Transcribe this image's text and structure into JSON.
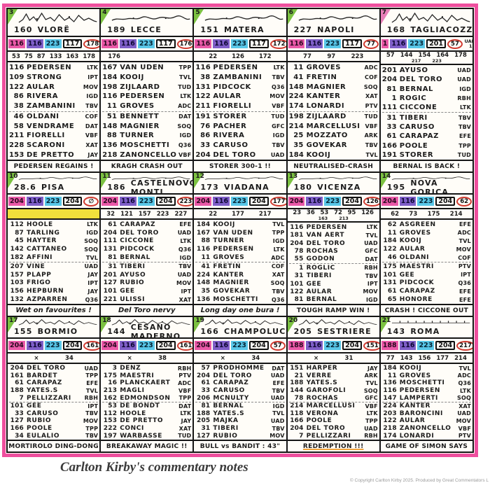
{
  "page": {
    "caption": "Carlton Kirby's commentary notes",
    "copyright": "© Copyright Carlton Kirby 2025. Produced by Great Commentators L",
    "frame_color": "#ee4f9e"
  },
  "colors": {
    "pink_chip": "#ea59a8",
    "purple_chip": "#7f5fc8",
    "blue_chip": "#59c7e8",
    "red_circle": "#d03a30",
    "yellow_highlight": "#f0e03c",
    "corner_green": "#7cc242",
    "corner_pink": "#e87fb8"
  },
  "panels": [
    {
      "stage": "3",
      "corner_color": "#7cc242",
      "profile": "mountain",
      "distance": "160",
      "city": "VLORË",
      "chips": {
        "pink": "116",
        "purple": "116",
        "blue": "223",
        "boxed": "117",
        "circled": "178",
        "code_top": "XAT",
        "code_bot": "22"
      },
      "subrow": "53 75 87 133 163 178",
      "subrow2": "",
      "yellow_bar": false,
      "riders": [
        [
          "116",
          "PEDERSEN",
          "LTK"
        ],
        [
          "109",
          "STRONG",
          "IPT"
        ],
        [
          "122",
          "AULAR",
          "MOV"
        ],
        [
          "86",
          "RIVERA",
          "IGD"
        ],
        [
          "38",
          "ZAMBANINI",
          "TBV"
        ],
        [
          "46",
          "OLDANI",
          "COF"
        ],
        [
          "58",
          "VENDRAME",
          "DAT"
        ],
        [
          "211",
          "FIORELLI",
          "VBF"
        ],
        [
          "228",
          "SCARONI",
          "XAT"
        ],
        [
          "153",
          "DE PRETTO",
          "JAY"
        ]
      ],
      "note": "PEDERSEN REGAINS !",
      "note_script": false,
      "note_underline": false
    },
    {
      "stage": "4",
      "corner_color": "#7cc242",
      "profile": "hilly",
      "distance": "189",
      "city": "LECCE",
      "chips": {
        "pink": "116",
        "purple": "116",
        "blue": "223",
        "boxed": "117",
        "circled": "176",
        "code_top": "LTK",
        "code_bot": "24"
      },
      "subrow": "176",
      "subrow2": "",
      "yellow_bar": false,
      "riders": [
        [
          "167",
          "VAN UDEN",
          "TPP"
        ],
        [
          "184",
          "KOOIJ",
          "TVL"
        ],
        [
          "198",
          "ZIJLAARD",
          "TUD"
        ],
        [
          "116",
          "PEDERSEN",
          "LTK"
        ],
        [
          "11",
          "GROVES",
          "ADC"
        ],
        [
          "51",
          "BENNETT",
          "DAT"
        ],
        [
          "148",
          "MAGNIER",
          "SOQ"
        ],
        [
          "88",
          "TURNER",
          "IGD"
        ],
        [
          "136",
          "MOSCHETTI",
          "Q36"
        ],
        [
          "218",
          "ZANONCELLO",
          "VBF"
        ]
      ],
      "note": "KRAGH CRASH OUT",
      "note_script": false,
      "note_underline": false
    },
    {
      "stage": "5",
      "corner_color": "#7cc242",
      "profile": "hilly",
      "distance": "151",
      "city": "MATERA",
      "chips": {
        "pink": "116",
        "purple": "116",
        "blue": "223",
        "boxed": "117",
        "circled": "172",
        "code_top": "LTK",
        "code_bot": "16"
      },
      "subrow": "22 126 172",
      "subrow2": "",
      "yellow_bar": false,
      "riders": [
        [
          "116",
          "PEDERSEN",
          "LTK"
        ],
        [
          "38",
          "ZAMBANINI",
          "TBV"
        ],
        [
          "131",
          "PIDCOCK",
          "Q36"
        ],
        [
          "122",
          "AULAR",
          "MOV"
        ],
        [
          "211",
          "FIORELLI",
          "VBF"
        ],
        [
          "191",
          "STORER",
          "TUD"
        ],
        [
          "76",
          "PACHER",
          "GFC"
        ],
        [
          "86",
          "RIVERA",
          "IGD"
        ],
        [
          "33",
          "CARUSO",
          "TBV"
        ],
        [
          "204",
          "DEL TORO",
          "UAD"
        ]
      ],
      "note": "STORER 300-1 !!",
      "note_script": false,
      "note_underline": false
    },
    {
      "stage": "6",
      "corner_color": "#7cc242",
      "profile": "hilly",
      "distance": "227",
      "city": "NAPOLI",
      "chips": {
        "pink": "116",
        "purple": "116",
        "blue": "223",
        "boxed": "117",
        "circled": "77",
        "code_top": "LTK",
        "code_bot": "19"
      },
      "subrow": "77 97 223",
      "subrow2": "",
      "yellow_bar": false,
      "riders": [
        [
          "11",
          "GROVES",
          "ADC"
        ],
        [
          "41",
          "FRETIN",
          "COF"
        ],
        [
          "148",
          "MAGNIER",
          "SOQ"
        ],
        [
          "224",
          "KANTER",
          "XAT"
        ],
        [
          "174",
          "LONARDI",
          "PTV"
        ],
        [
          "198",
          "ZIJLAARD",
          "TUD"
        ],
        [
          "214",
          "MARCELLUSI",
          "VBF"
        ],
        [
          "25",
          "MOZZATO",
          "ARK"
        ],
        [
          "35",
          "GOVEKAR",
          "TBV"
        ],
        [
          "184",
          "KOOIJ",
          "TVL"
        ]
      ],
      "note": "NEUTRALISED-CRASH",
      "note_script": false,
      "note_underline": false
    },
    {
      "stage": "7",
      "corner_color": "#e87fb8",
      "profile": "mountain",
      "distance": "168",
      "city": "TAGLIACOZZO",
      "chips": {
        "pink": "1",
        "purple": "116",
        "blue": "223",
        "boxed": "201",
        "circled": "57",
        "code_top": "UAD",
        "code_bot": "13"
      },
      "subrow": "57 144 154 164 178",
      "subrow2": "217 223",
      "yellow_bar": false,
      "riders": [
        [
          "201",
          "AYUSO",
          "UAD"
        ],
        [
          "204",
          "DEL TORO",
          "UAD"
        ],
        [
          "81",
          "BERNAL",
          "IGD"
        ],
        [
          "1",
          "ROGIC",
          "RBH"
        ],
        [
          "111",
          "CICCONE",
          "LTK"
        ],
        [
          "31",
          "TIBERI",
          "TBV"
        ],
        [
          "33",
          "CARUSO",
          "TBV"
        ],
        [
          "61",
          "CARAPAZ",
          "EFE"
        ],
        [
          "166",
          "POOLE",
          "TPP"
        ],
        [
          "191",
          "STORER",
          "TUD"
        ]
      ],
      "note": "BERNAL IS BACK !",
      "note_script": false,
      "note_underline": false
    },
    {
      "stage": "10",
      "corner_color": "#7cc242",
      "profile": "hilly",
      "distance": "28.6",
      "city": "PISA",
      "chips": {
        "pink": "204",
        "purple": "116",
        "blue": "223",
        "boxed": "204",
        "circled": "∅",
        "code_top": "UAD",
        "code_bot": "16"
      },
      "subrow": "",
      "subrow2": "",
      "yellow_bar": true,
      "riders": [
        [
          "112",
          "HOOLE",
          "LTK"
        ],
        [
          "87",
          "TARLING",
          "IGD"
        ],
        [
          "45",
          "HAYTER",
          "SOQ"
        ],
        [
          "142",
          "CATTANEO",
          "SOQ"
        ],
        [
          "182",
          "AFFINI",
          "TVL"
        ],
        [
          "207",
          "VINE",
          "UAD"
        ],
        [
          "157",
          "PLAPP",
          "JAY"
        ],
        [
          "103",
          "FRIGO",
          "IPT"
        ],
        [
          "156",
          "HEPBURN",
          "JAY"
        ],
        [
          "132",
          "AZPARREN",
          "Q36"
        ]
      ],
      "note": "Wet on favourites !",
      "note_script": true,
      "note_underline": false
    },
    {
      "stage": "11",
      "corner_color": "#7cc242",
      "profile": "hilly",
      "distance": "186",
      "city": "CASTELNOVO MONTI",
      "chips": {
        "pink": "204",
        "purple": "116",
        "blue": "223",
        "boxed": "204",
        "circled": "223",
        "code_top": "UAD",
        "code_bot": "18"
      },
      "subrow": "32 121 157 223 227",
      "subrow2": "",
      "yellow_bar": false,
      "riders": [
        [
          "61",
          "CARAPAZ",
          "EFE"
        ],
        [
          "204",
          "DEL TORO",
          "UAD"
        ],
        [
          "111",
          "CICCONE",
          "LTK"
        ],
        [
          "131",
          "PIDCOCK",
          "Q36"
        ],
        [
          "81",
          "BERNAL",
          "IGD"
        ],
        [
          "31",
          "TIBERI",
          "TBV"
        ],
        [
          "201",
          "AYUSO",
          "UAD"
        ],
        [
          "127",
          "RUBIO",
          "MOV"
        ],
        [
          "101",
          "GEE",
          "IPT"
        ],
        [
          "221",
          "ULISSI",
          "XAT"
        ]
      ],
      "note": "Del Toro nervy",
      "note_script": true,
      "note_underline": false
    },
    {
      "stage": "12",
      "corner_color": "#7cc242",
      "profile": "hilly",
      "distance": "173",
      "city": "VIADANA",
      "chips": {
        "pink": "204",
        "purple": "116",
        "blue": "223",
        "boxed": "204",
        "circled": "177",
        "code_top": "LTK",
        "code_bot": "18"
      },
      "subrow": "22 177 217",
      "subrow2": "",
      "yellow_bar": false,
      "riders": [
        [
          "184",
          "KOOIJ",
          "TVL"
        ],
        [
          "167",
          "VAN UDEN",
          "TPP"
        ],
        [
          "88",
          "TURNER",
          "IGD"
        ],
        [
          "116",
          "PEDERSEN",
          "LTK"
        ],
        [
          "11",
          "GROVES",
          "ADC"
        ],
        [
          "41",
          "FRETIN",
          "COF"
        ],
        [
          "224",
          "KANTER",
          "XAT"
        ],
        [
          "148",
          "MAGNIER",
          "SOQ"
        ],
        [
          "35",
          "GOVEKAR",
          "TBV"
        ],
        [
          "136",
          "MOSCHETTI",
          "Q36"
        ]
      ],
      "note": "Long day one bura !",
      "note_script": true,
      "note_underline": false
    },
    {
      "stage": "13",
      "corner_color": "#7cc242",
      "profile": "hilly",
      "distance": "180",
      "city": "VICENZA",
      "chips": {
        "pink": "204",
        "purple": "116",
        "blue": "223",
        "boxed": "204",
        "circled": "126",
        "code_top": "UAD",
        "code_bot": "20"
      },
      "subrow": "23 36 53 72 95 126",
      "subrow2": "163 213",
      "yellow_bar": false,
      "riders": [
        [
          "116",
          "PEDERSEN",
          "LTK"
        ],
        [
          "181",
          "VAN AERT",
          "TVL"
        ],
        [
          "204",
          "DEL TORO",
          "UAD"
        ],
        [
          "78",
          "ROCHAS",
          "GFC"
        ],
        [
          "55",
          "GODON",
          "DAT"
        ],
        [
          "1",
          "ROGLIC",
          "RBH"
        ],
        [
          "31",
          "TIBERI",
          "TBV"
        ],
        [
          "101",
          "GEE",
          "IPT"
        ],
        [
          "122",
          "AULAR",
          "MOV"
        ],
        [
          "81",
          "BERNAL",
          "IGD"
        ]
      ],
      "note": "TOUGH RAMP WIN !",
      "note_script": false,
      "note_underline": false
    },
    {
      "stage": "14",
      "corner_color": "#7cc242",
      "profile": "hilly",
      "distance": "195",
      "city": "NOVA GORICA",
      "chips": {
        "pink": "204",
        "purple": "116",
        "blue": "223",
        "boxed": "204",
        "circled": "62",
        "code_top": "UAD",
        "code_bot": "18"
      },
      "subrow": "62 73 175 214",
      "subrow2": "",
      "yellow_bar": false,
      "riders": [
        [
          "62",
          "ASGREEN",
          "EFE"
        ],
        [
          "11",
          "GROVES",
          "ADC"
        ],
        [
          "184",
          "KOOIJ",
          "TVL"
        ],
        [
          "122",
          "AULAR",
          "MOV"
        ],
        [
          "46",
          "OLDANI",
          "COF"
        ],
        [
          "175",
          "MAESTRI",
          "PTV"
        ],
        [
          "101",
          "GEE",
          "IPT"
        ],
        [
          "131",
          "PIDCOCK",
          "Q36"
        ],
        [
          "61",
          "CARAPAZ",
          "EFE"
        ],
        [
          "65",
          "HONORÉ",
          "EFE"
        ]
      ],
      "note": "CRASH ! CICCONE OUT",
      "note_script": false,
      "note_underline": false
    },
    {
      "stage": "17",
      "corner_color": "#7cc242",
      "profile": "mountain",
      "distance": "155",
      "city": "BORMIO",
      "chips": {
        "pink": "204",
        "purple": "116",
        "blue": "223",
        "boxed": "204",
        "circled": "161",
        "code_top": "UAD",
        "code_bot": "19"
      },
      "subrow": "× 34",
      "subrow2": "",
      "yellow_bar": false,
      "riders": [
        [
          "204",
          "DEL TORO",
          "UAD"
        ],
        [
          "161",
          "BARDET",
          "TPP"
        ],
        [
          "61",
          "CARAPAZ",
          "EFE"
        ],
        [
          "188",
          "YATES.S",
          "TVL"
        ],
        [
          "7",
          "PELLIZZARI",
          "RBH"
        ],
        [
          "101",
          "GEE",
          "IPT"
        ],
        [
          "33",
          "CARUSO",
          "TBV"
        ],
        [
          "127",
          "RUBIO",
          "MOV"
        ],
        [
          "166",
          "POOLE",
          "TPP"
        ],
        [
          "34",
          "EULALIO",
          "TBV"
        ]
      ],
      "note": "MORTIROLO DING-DONG",
      "note_script": false,
      "note_underline": false
    },
    {
      "stage": "18",
      "corner_color": "#7cc242",
      "profile": "mountain",
      "distance": "144",
      "city": "CESANO MADERNO",
      "chips": {
        "pink": "204",
        "purple": "116",
        "blue": "223",
        "boxed": "204",
        "circled": "161",
        "code_top": "UAD",
        "code_bot": "19"
      },
      "subrow": "× 38",
      "subrow2": "",
      "yellow_bar": false,
      "riders": [
        [
          "3",
          "DENZ",
          "RBH"
        ],
        [
          "175",
          "MAESTRI",
          "PTV"
        ],
        [
          "16",
          "PLANCKAERT",
          "ADC"
        ],
        [
          "213",
          "MAGLI",
          "VBF"
        ],
        [
          "162",
          "EDMONDSON",
          "TPP"
        ],
        [
          "53",
          "DE BONDT",
          "DAT"
        ],
        [
          "112",
          "HOOLE",
          "LTK"
        ],
        [
          "153",
          "DE PRETTO",
          "JAY"
        ],
        [
          "222",
          "CONCI",
          "XAT"
        ],
        [
          "197",
          "WARBASSE",
          "TUD"
        ]
      ],
      "note": "BREAKAWAY MAGIC !!",
      "note_script": false,
      "note_underline": false
    },
    {
      "stage": "19",
      "corner_color": "#7cc242",
      "profile": "mountain",
      "distance": "166",
      "city": "CHAMPOLUC",
      "chips": {
        "pink": "204",
        "purple": "116",
        "blue": "223",
        "boxed": "204",
        "circled": "57",
        "code_top": "UAD",
        "code_bot": "29"
      },
      "subrow": "× 34",
      "subrow2": "",
      "yellow_bar": false,
      "riders": [
        [
          "57",
          "PRODHOMME",
          "DAT"
        ],
        [
          "204",
          "DEL TORO",
          "UAD"
        ],
        [
          "61",
          "CARAPAZ",
          "EFE"
        ],
        [
          "33",
          "CARUSO",
          "TBV"
        ],
        [
          "206",
          "MCNULTY",
          "UAD"
        ],
        [
          "81",
          "BERNAL",
          "IGD"
        ],
        [
          "188",
          "YATES.S",
          "TVL"
        ],
        [
          "205",
          "MAJKA",
          "UAD"
        ],
        [
          "31",
          "TIBERI",
          "TBV"
        ],
        [
          "127",
          "RUBIO",
          "MOV"
        ]
      ],
      "note": "BULL vs BANDIT : 43\"",
      "note_script": false,
      "note_underline": false
    },
    {
      "stage": "20",
      "corner_color": "#7cc242",
      "profile": "mountain",
      "distance": "205",
      "city": "SESTRIERE",
      "chips": {
        "pink": "188",
        "purple": "116",
        "blue": "223",
        "boxed": "204",
        "circled": "151",
        "code_top": "UAD",
        "code_bot": "24"
      },
      "subrow": "× 31",
      "subrow2": "",
      "yellow_bar": false,
      "riders": [
        [
          "151",
          "HARPER",
          "JAY"
        ],
        [
          "21",
          "VERRE",
          "ARK"
        ],
        [
          "188",
          "YATES.S",
          "TVL"
        ],
        [
          "144",
          "GAROFOLI",
          "SOQ"
        ],
        [
          "78",
          "ROCHAS",
          "GFC"
        ],
        [
          "214",
          "MARCELLUSI",
          "VBF"
        ],
        [
          "118",
          "VERONA",
          "LTK"
        ],
        [
          "166",
          "POOLE",
          "TPP"
        ],
        [
          "204",
          "DEL TORO",
          "UAD"
        ],
        [
          "7",
          "PELLIZZARI",
          "RBH"
        ]
      ],
      "note": "REDEMPTION !!!",
      "note_script": false,
      "note_underline": true
    },
    {
      "stage": "21",
      "corner_color": "#7cc242",
      "profile": "flat",
      "distance": "143",
      "city": "ROMA",
      "chips": {
        "pink": "188",
        "purple": "116",
        "blue": "223",
        "boxed": "204",
        "circled": "217",
        "code_top": "UAD",
        "code_bot": "26"
      },
      "subrow": "77 143 156 177 214",
      "subrow2": "",
      "yellow_bar": false,
      "riders": [
        [
          "184",
          "KOOIJ",
          "TVL"
        ],
        [
          "11",
          "GROVES",
          "ADC"
        ],
        [
          "136",
          "MOSCHETTI",
          "Q36"
        ],
        [
          "116",
          "PEDERSEN",
          "LTK"
        ],
        [
          "147",
          "LAMPERTI",
          "SOQ"
        ],
        [
          "224",
          "KANTER",
          "XAT"
        ],
        [
          "203",
          "BARONCINI",
          "UAD"
        ],
        [
          "122",
          "AULAR",
          "MOV"
        ],
        [
          "218",
          "ZANONCELLO",
          "VBF"
        ],
        [
          "174",
          "LONARDI",
          "PTV"
        ]
      ],
      "note": "GAME OF SIMON SAYS",
      "note_script": false,
      "note_underline": false
    }
  ]
}
